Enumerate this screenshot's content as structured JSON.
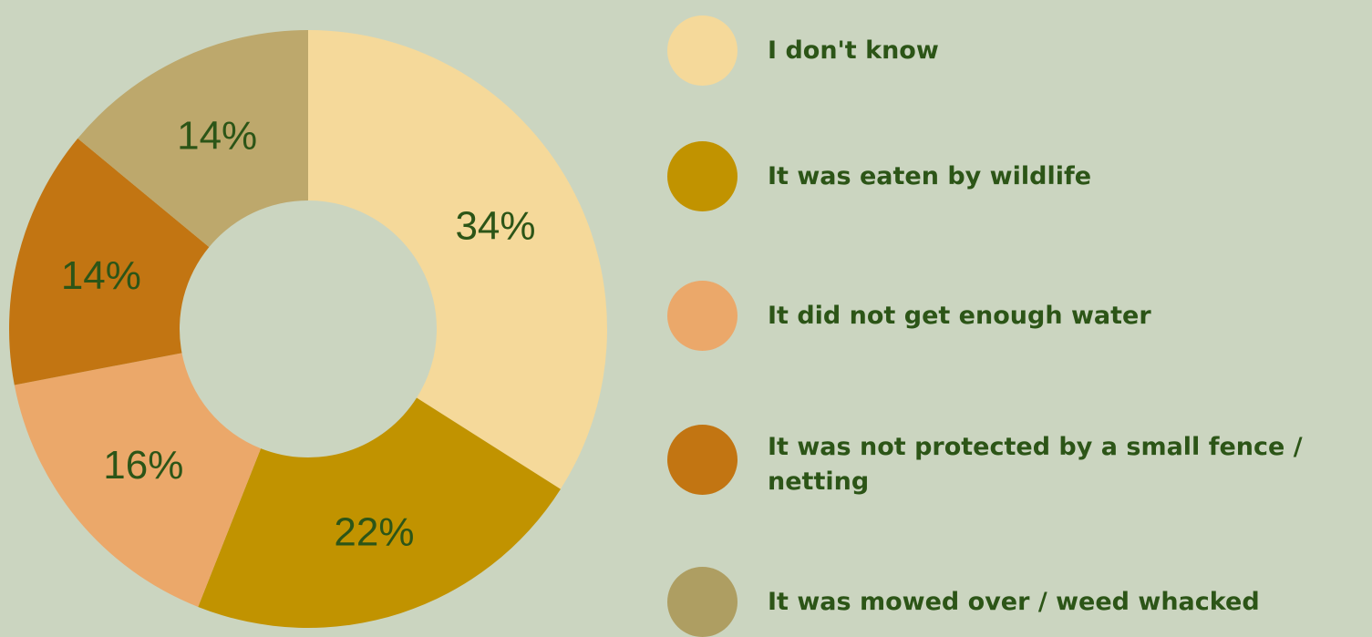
{
  "colors": {
    "background": "#cbd5c0",
    "text": "#2c5517"
  },
  "chart_data": {
    "type": "pie",
    "donut": true,
    "categories": [
      "I don't know",
      "It was eaten by wildlife",
      "It did not get enough water",
      "It was not protected by a small fence / netting",
      "It was mowed over / weed whacked"
    ],
    "values": [
      34,
      22,
      16,
      14,
      14
    ],
    "labels": [
      "34%",
      "22%",
      "16%",
      "14%",
      "14%"
    ],
    "colors": [
      "#f5d99a",
      "#c19300",
      "#eba86a",
      "#c27512",
      "#bda86c"
    ],
    "legend_colors": [
      "#f5d99a",
      "#c19300",
      "#eba86a",
      "#c27512",
      "#ae9e62"
    ],
    "start": "12 o'clock",
    "direction": "clockwise",
    "legend_position": "right"
  }
}
